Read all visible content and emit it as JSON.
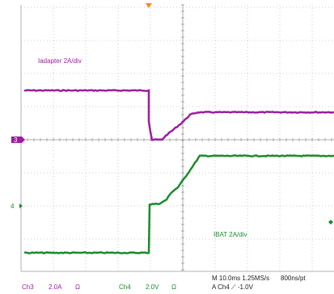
{
  "traces": {
    "ch3": {
      "label": "Iadapter 2A/div",
      "color": "#9b1e9e",
      "marker": "3"
    },
    "ch4": {
      "label": "IBAT 2A/div",
      "color": "#1c8a2c",
      "marker": "4"
    }
  },
  "status_bar": {
    "ch3_name": "Ch3",
    "ch3_scale": "2.0A",
    "ch3_unit": "Ω",
    "ch4_name": "Ch4",
    "ch4_scale": "2.0V",
    "ch4_unit": "Ω",
    "timebase": "M 10.0ms  1.25MS/s",
    "record": "800ns/pt",
    "trigger": "A  Ch4  ⟋  -1.0V"
  },
  "colors": {
    "grid": "#bfbfbf",
    "trigger_marker": "#f28c1e"
  }
}
